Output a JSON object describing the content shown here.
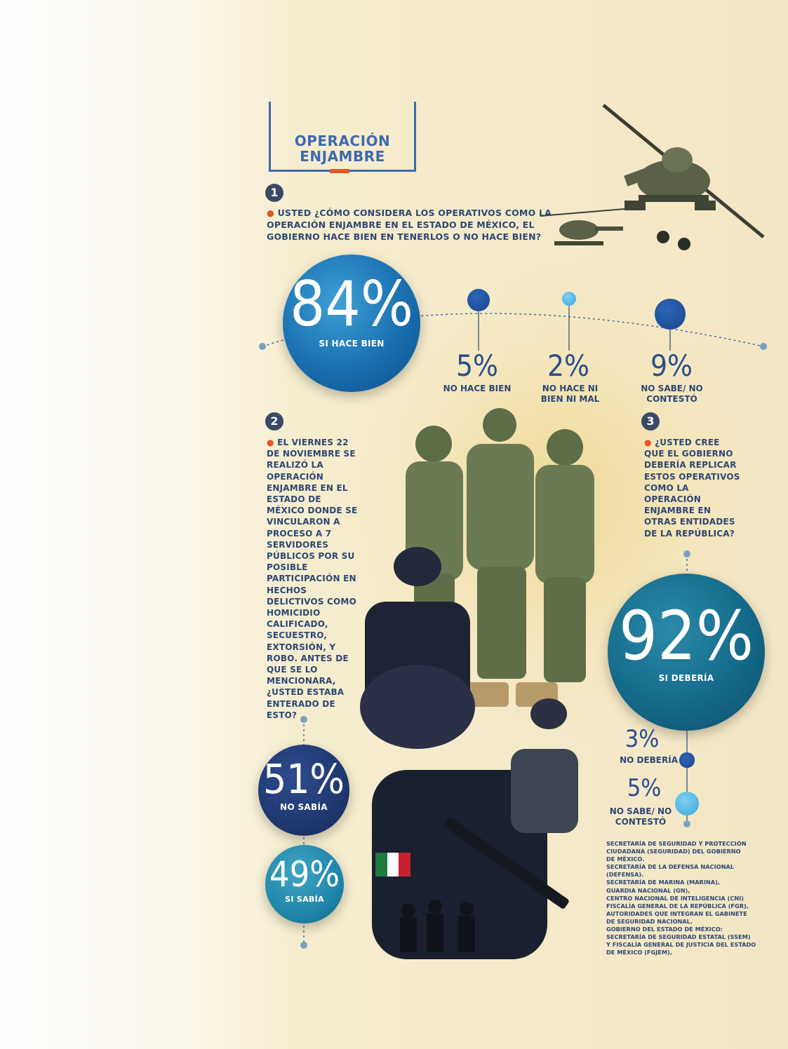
{
  "title": {
    "line1": "OPERACIÓN",
    "line2": "ENJAMBRE"
  },
  "colors": {
    "accent": "#e2572c",
    "title_blue": "#3d6ab0",
    "text_navy": "#2d4775"
  },
  "q1": {
    "number": "1",
    "text": "USTED ¿CÓMO CONSIDERA LOS OPERATIVOS COMO LA OPERACIÓN ENJAMBRE EN EL ESTADO DE MÉXICO, EL GOBIERNO HACE BIEN EN TENERLOS O NO HACE BIEN?"
  },
  "q2": {
    "number": "2",
    "text": "EL VIERNES 22 DE NOVIEMBRE SE REALIZÓ LA OPERACIÓN ENJAMBRE EN EL ESTADO DE MÉXICO DONDE SE VINCULARON A PROCESO A 7 SERVIDORES PÚBLICOS POR SU POSIBLE PARTICIPACIÓN EN HECHOS DELICTIVOS COMO HOMICIDIO CALIFICADO, SECUESTRO, EXTORSIÓN, Y ROBO. ANTES DE QUE SE LO MENCIONARA, ¿USTED ESTABA ENTERADO DE ESTO?"
  },
  "q3": {
    "number": "3",
    "text": "¿USTED CREE QUE EL GOBIERNO DEBERÍA REPLICAR ESTOS OPERATIVOS COMO LA OPERACIÓN ENJAMBRE EN OTRAS ENTIDADES DE LA REPÚBLICA?"
  },
  "chart_data": [
    {
      "type": "bubble",
      "categories": [
        "SI HACE BIEN",
        "NO HACE BIEN",
        "NO HACE NI BIEN NI MAL",
        "NO SABE/ NO CONTESTÓ"
      ],
      "values": [
        84,
        5,
        2,
        9
      ],
      "value_labels": [
        "84%",
        "5%",
        "2%",
        "9%"
      ],
      "colors": [
        "#1a6fb0",
        "#1f4f9a",
        "#4fb3e3",
        "#1f4f9a"
      ]
    },
    {
      "type": "bubble",
      "categories": [
        "NO SABÍA",
        "SI SABÍA"
      ],
      "values": [
        51,
        49
      ],
      "value_labels": [
        "51%",
        "49%"
      ],
      "colors": [
        "#1f3870",
        "#1f86aa"
      ]
    },
    {
      "type": "bubble",
      "categories": [
        "SI DEBERÍA",
        "NO DEBERÍA",
        "NO SABE/ NO CONTESTÓ"
      ],
      "values": [
        92,
        3,
        5
      ],
      "value_labels": [
        "92%",
        "3%",
        "5%"
      ],
      "colors": [
        "#156a8a",
        "#1f4f9a",
        "#4fb3e3"
      ]
    }
  ],
  "sources": [
    "SECRETARÍA DE SEGURIDAD Y PROTECCIÓN",
    "CIUDADANA (SEGURIDAD) DEL GOBIERNO",
    "DE MÉXICO.",
    "SECRETARÍA DE LA DEFENSA NACIONAL",
    "(DEFENSA).",
    "SECRETARÍA DE MARINA (MARINA),",
    "GUARDIA NACIONAL (GN),",
    "CENTRO NACIONAL DE INTELIGENCIA (CNI)",
    "FISCALÍA GENERAL DE LA REPÚBLICA (FGR),",
    "AUTORIDADES QUE INTEGRAN EL GABINETE",
    "DE SEGURIDAD NACIONAL.",
    "GOBIERNO DEL ESTADO DE MÉXICO:",
    "SECRETARÍA DE SEGURIDAD ESTATAL (SSEM)",
    "Y FISCALÍA GENERAL DE JUSTICIA DEL ESTADO",
    "DE MÉXICO (FGJEM),"
  ],
  "illustrations": {
    "helicopter": "helicopter-illustration",
    "soldiers": "soldiers-illustration",
    "police": "police-officers-illustration"
  }
}
